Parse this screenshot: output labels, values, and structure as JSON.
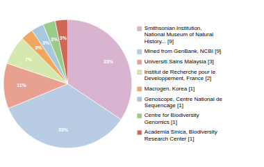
{
  "chart_data": {
    "type": "pie",
    "categories": [
      "Smithsonian Institution,\nNational Museum of Natural\nHistory... [9]",
      "Mined from GenBank, NCBI [9]",
      "Universiti Sains Malaysia [3]",
      "Institut de Recherche pour le\nDeveloppement, France [2]",
      "Macrogen, Korea [1]",
      "Genoscope, Centre National de\nSequencage [1]",
      "Centre for Biodiversity\nGenomics [1]",
      "Academia Sinica, Biodiversity\nResearch Center [1]"
    ],
    "values": [
      33,
      33,
      11,
      7,
      3,
      3,
      3,
      3
    ],
    "value_labels": [
      "33%",
      "33%",
      "11%",
      "7%",
      "3%",
      "3%",
      "3%",
      "3%"
    ],
    "colors": [
      "#d8b4d0",
      "#b8cce4",
      "#e8a090",
      "#d4e8b0",
      "#f0a860",
      "#a8c8e0",
      "#98cc88",
      "#d06858"
    ],
    "data_labels": true,
    "legend": "right"
  }
}
